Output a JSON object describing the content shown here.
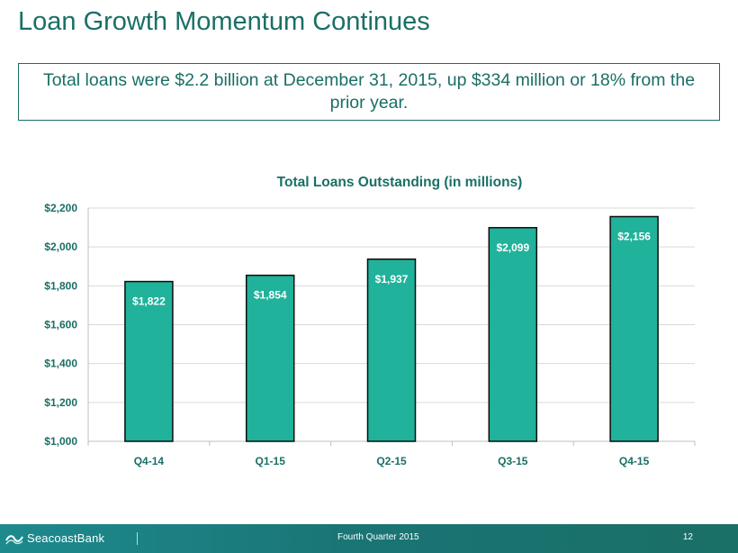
{
  "slide": {
    "title": "Loan Growth Momentum Continues",
    "callout": "Total loans were $2.2 billion at December 31, 2015, up $334 million or 18% from the prior year."
  },
  "chart_data": {
    "type": "bar",
    "title": "Total Loans Outstanding (in millions)",
    "xlabel": "",
    "ylabel": "",
    "categories": [
      "Q4-14",
      "Q1-15",
      "Q2-15",
      "Q3-15",
      "Q4-15"
    ],
    "values": [
      1822,
      1854,
      1937,
      2099,
      2156
    ],
    "data_labels": [
      "$1,822",
      "$1,854",
      "$1,937",
      "$2,099",
      "$2,156"
    ],
    "ylim": [
      1000,
      2200
    ],
    "y_ticks": [
      1000,
      1200,
      1400,
      1600,
      1800,
      2000,
      2200
    ],
    "y_tick_labels": [
      "$1,000",
      "$1,200",
      "$1,400",
      "$1,600",
      "$1,800",
      "$2,000",
      "$2,200"
    ],
    "grid": true,
    "legend": "none",
    "colors": {
      "bar": "#20b29a",
      "bar_outline": "#0d0d0d",
      "grid": "#d9d9d9",
      "text": "#1a6f66"
    }
  },
  "footer": {
    "logo_text": "SeacoastBank",
    "logo_icon": "seacoast-wave-icon",
    "center_text": "Fourth Quarter 2015",
    "page_number": "12"
  }
}
